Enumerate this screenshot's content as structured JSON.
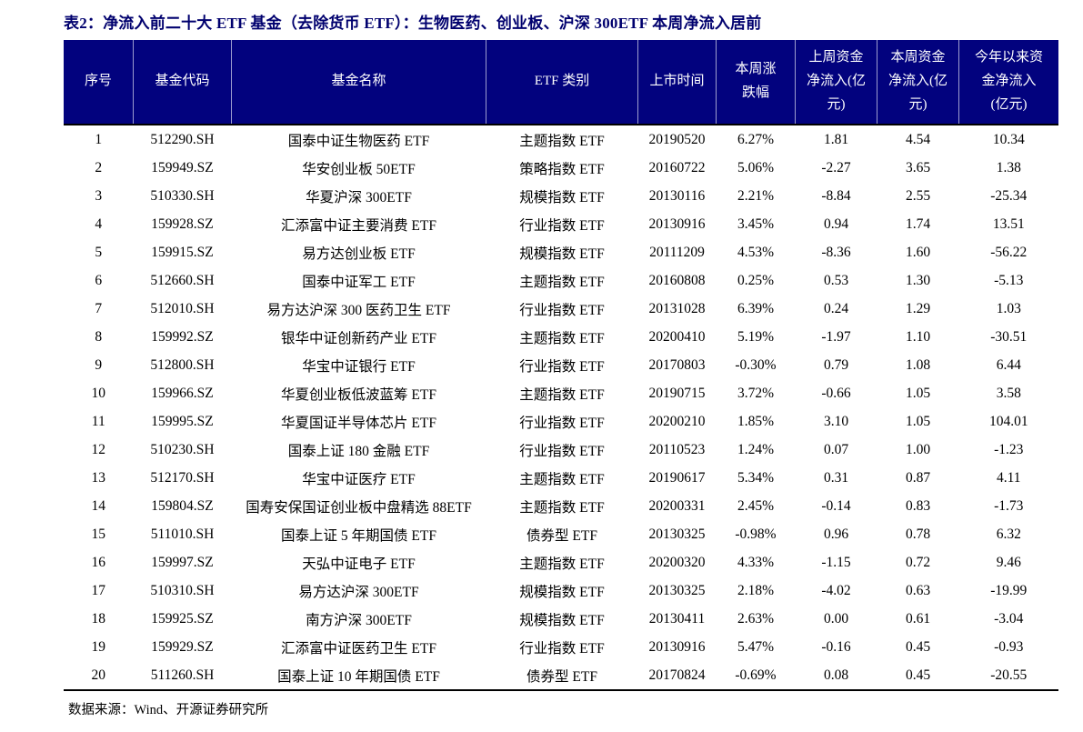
{
  "page": {
    "background": "#ffffff",
    "accent_navy": "#02027e",
    "title": "表2：净流入前二十大 ETF 基金（去除货币 ETF）：生物医药、创业板、沪深 300ETF 本周净流入居前",
    "source_note": "数据来源：Wind、开源证券研究所"
  },
  "table": {
    "header_bg": "#02027e",
    "header_text_color": "#ffffff",
    "columns": [
      "序号",
      "基金代码",
      "基金名称",
      "ETF 类别",
      "上市时间",
      "本周涨\n跌幅",
      "上周资金\n净流入(亿\n元)",
      "本周资金\n净流入(亿\n元)",
      "今年以来资\n金净流入\n(亿元)"
    ],
    "rows": [
      [
        "1",
        "512290.SH",
        "国泰中证生物医药 ETF",
        "主题指数 ETF",
        "20190520",
        "6.27%",
        "1.81",
        "4.54",
        "10.34"
      ],
      [
        "2",
        "159949.SZ",
        "华安创业板 50ETF",
        "策略指数 ETF",
        "20160722",
        "5.06%",
        "-2.27",
        "3.65",
        "1.38"
      ],
      [
        "3",
        "510330.SH",
        "华夏沪深 300ETF",
        "规模指数 ETF",
        "20130116",
        "2.21%",
        "-8.84",
        "2.55",
        "-25.34"
      ],
      [
        "4",
        "159928.SZ",
        "汇添富中证主要消费 ETF",
        "行业指数 ETF",
        "20130916",
        "3.45%",
        "0.94",
        "1.74",
        "13.51"
      ],
      [
        "5",
        "159915.SZ",
        "易方达创业板 ETF",
        "规模指数 ETF",
        "20111209",
        "4.53%",
        "-8.36",
        "1.60",
        "-56.22"
      ],
      [
        "6",
        "512660.SH",
        "国泰中证军工 ETF",
        "主题指数 ETF",
        "20160808",
        "0.25%",
        "0.53",
        "1.30",
        "-5.13"
      ],
      [
        "7",
        "512010.SH",
        "易方达沪深 300 医药卫生 ETF",
        "行业指数 ETF",
        "20131028",
        "6.39%",
        "0.24",
        "1.29",
        "1.03"
      ],
      [
        "8",
        "159992.SZ",
        "银华中证创新药产业 ETF",
        "主题指数 ETF",
        "20200410",
        "5.19%",
        "-1.97",
        "1.10",
        "-30.51"
      ],
      [
        "9",
        "512800.SH",
        "华宝中证银行 ETF",
        "行业指数 ETF",
        "20170803",
        "-0.30%",
        "0.79",
        "1.08",
        "6.44"
      ],
      [
        "10",
        "159966.SZ",
        "华夏创业板低波蓝筹 ETF",
        "主题指数 ETF",
        "20190715",
        "3.72%",
        "-0.66",
        "1.05",
        "3.58"
      ],
      [
        "11",
        "159995.SZ",
        "华夏国证半导体芯片 ETF",
        "行业指数 ETF",
        "20200210",
        "1.85%",
        "3.10",
        "1.05",
        "104.01"
      ],
      [
        "12",
        "510230.SH",
        "国泰上证 180 金融 ETF",
        "行业指数 ETF",
        "20110523",
        "1.24%",
        "0.07",
        "1.00",
        "-1.23"
      ],
      [
        "13",
        "512170.SH",
        "华宝中证医疗 ETF",
        "主题指数 ETF",
        "20190617",
        "5.34%",
        "0.31",
        "0.87",
        "4.11"
      ],
      [
        "14",
        "159804.SZ",
        "国寿安保国证创业板中盘精选 88ETF",
        "主题指数 ETF",
        "20200331",
        "2.45%",
        "-0.14",
        "0.83",
        "-1.73"
      ],
      [
        "15",
        "511010.SH",
        "国泰上证 5 年期国债 ETF",
        "债券型 ETF",
        "20130325",
        "-0.98%",
        "0.96",
        "0.78",
        "6.32"
      ],
      [
        "16",
        "159997.SZ",
        "天弘中证电子 ETF",
        "主题指数 ETF",
        "20200320",
        "4.33%",
        "-1.15",
        "0.72",
        "9.46"
      ],
      [
        "17",
        "510310.SH",
        "易方达沪深 300ETF",
        "规模指数 ETF",
        "20130325",
        "2.18%",
        "-4.02",
        "0.63",
        "-19.99"
      ],
      [
        "18",
        "159925.SZ",
        "南方沪深 300ETF",
        "规模指数 ETF",
        "20130411",
        "2.63%",
        "0.00",
        "0.61",
        "-3.04"
      ],
      [
        "19",
        "159929.SZ",
        "汇添富中证医药卫生 ETF",
        "行业指数 ETF",
        "20130916",
        "5.47%",
        "-0.16",
        "0.45",
        "-0.93"
      ],
      [
        "20",
        "511260.SH",
        "国泰上证 10 年期国债 ETF",
        "债券型 ETF",
        "20170824",
        "-0.69%",
        "0.08",
        "0.45",
        "-20.55"
      ]
    ]
  }
}
